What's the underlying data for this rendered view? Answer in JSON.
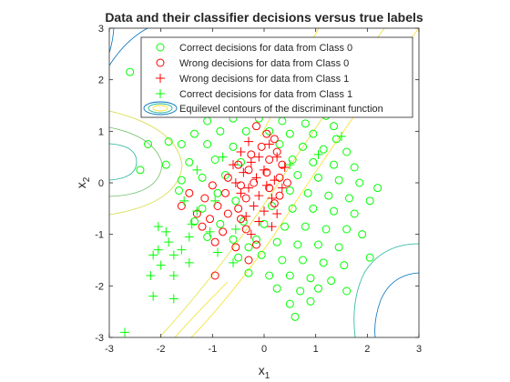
{
  "chart_data": {
    "type": "scatter",
    "title": "Data and their classifier decisions versus true labels",
    "xlabel": "x",
    "xlabel_sub": "1",
    "ylabel": "x",
    "ylabel_sub": "2",
    "xlim": [
      -3,
      3
    ],
    "ylim": [
      -3,
      3
    ],
    "xticks": [
      -3,
      -2,
      -1,
      0,
      1,
      2,
      3
    ],
    "yticks": [
      -3,
      -2,
      -1,
      0,
      1,
      2,
      3
    ],
    "xtick_labels": [
      "-3",
      "-2",
      "-1",
      "0",
      "1",
      "2",
      "3"
    ],
    "ytick_labels": [
      "-3",
      "-2",
      "-1",
      "0",
      "1",
      "2",
      "3"
    ],
    "grid": false,
    "legend_position": "top-right",
    "legend": [
      {
        "label": "Correct decisions for data from Class 0",
        "marker": "circle",
        "color": "#00ff00"
      },
      {
        "label": "Wrong decisions for data from Class 0",
        "marker": "circle",
        "color": "#ff0000"
      },
      {
        "label": "Wrong decisions for data from Class 1",
        "marker": "plus",
        "color": "#ff0000"
      },
      {
        "label": "Correct decisions for data from Class 1",
        "marker": "plus",
        "color": "#00ff00"
      },
      {
        "label": "Equilevel contours of the discriminant function",
        "marker": "contour",
        "color": "#0072bd"
      }
    ],
    "series": [
      {
        "name": "Correct decisions for data from Class 0",
        "marker": "circle",
        "color": "#00ff00",
        "points": [
          [
            -2.6,
            2.15
          ],
          [
            -1.3,
            1.7
          ],
          [
            -0.25,
            1.75
          ],
          [
            0.05,
            1.8
          ],
          [
            0.4,
            1.65
          ],
          [
            0.9,
            1.5
          ],
          [
            -0.9,
            1.45
          ],
          [
            -0.4,
            1.5
          ],
          [
            0.2,
            1.45
          ],
          [
            0.65,
            1.35
          ],
          [
            1.2,
            1.3
          ],
          [
            -1.1,
            1.2
          ],
          [
            -0.6,
            1.25
          ],
          [
            -0.1,
            1.25
          ],
          [
            0.35,
            1.2
          ],
          [
            0.8,
            1.15
          ],
          [
            1.35,
            1.1
          ],
          [
            -1.35,
            0.95
          ],
          [
            -0.85,
            1.0
          ],
          [
            -0.35,
            1.0
          ],
          [
            0.1,
            1.0
          ],
          [
            0.5,
            0.95
          ],
          [
            0.95,
            0.95
          ],
          [
            1.4,
            0.85
          ],
          [
            -2.25,
            0.75
          ],
          [
            -1.85,
            0.8
          ],
          [
            -1.6,
            0.75
          ],
          [
            -1.1,
            0.75
          ],
          [
            -0.6,
            0.7
          ],
          [
            0.3,
            0.75
          ],
          [
            0.75,
            0.7
          ],
          [
            1.15,
            0.65
          ],
          [
            1.6,
            0.6
          ],
          [
            -2.4,
            0.25
          ],
          [
            -1.9,
            0.35
          ],
          [
            -1.45,
            0.4
          ],
          [
            -0.95,
            0.45
          ],
          [
            -0.45,
            0.4
          ],
          [
            0.55,
            0.45
          ],
          [
            0.95,
            0.4
          ],
          [
            1.35,
            0.35
          ],
          [
            1.75,
            0.3
          ],
          [
            -1.6,
            0.05
          ],
          [
            -1.2,
            0.1
          ],
          [
            -0.75,
            0.15
          ],
          [
            0.65,
            0.15
          ],
          [
            1.05,
            0.1
          ],
          [
            1.45,
            0.05
          ],
          [
            1.85,
            0.0
          ],
          [
            2.2,
            -0.1
          ],
          [
            -0.9,
            -0.2
          ],
          [
            0.5,
            -0.15
          ],
          [
            0.85,
            -0.2
          ],
          [
            1.25,
            -0.25
          ],
          [
            1.65,
            -0.3
          ],
          [
            2.05,
            -0.35
          ],
          [
            -1.2,
            -0.5
          ],
          [
            0.15,
            -0.45
          ],
          [
            0.55,
            -0.5
          ],
          [
            0.95,
            -0.5
          ],
          [
            1.35,
            -0.55
          ],
          [
            1.75,
            -0.6
          ],
          [
            -0.85,
            -0.8
          ],
          [
            -0.4,
            -0.75
          ],
          [
            0.0,
            -0.8
          ],
          [
            0.4,
            -0.85
          ],
          [
            0.8,
            -0.85
          ],
          [
            1.2,
            -0.9
          ],
          [
            1.6,
            -0.9
          ],
          [
            -1.1,
            -1.05
          ],
          [
            -0.6,
            -1.1
          ],
          [
            -0.15,
            -1.1
          ],
          [
            0.25,
            -1.15
          ],
          [
            0.65,
            -1.2
          ],
          [
            1.05,
            -1.2
          ],
          [
            1.45,
            -1.25
          ],
          [
            -0.5,
            -1.45
          ],
          [
            -0.05,
            -1.4
          ],
          [
            0.35,
            -1.5
          ],
          [
            0.75,
            -1.5
          ],
          [
            1.15,
            -1.55
          ],
          [
            1.55,
            -1.6
          ],
          [
            -0.3,
            -1.75
          ],
          [
            0.1,
            -1.8
          ],
          [
            0.5,
            -1.8
          ],
          [
            0.9,
            -1.85
          ],
          [
            1.3,
            -1.9
          ],
          [
            0.25,
            -2.05
          ],
          [
            0.7,
            -2.1
          ],
          [
            1.05,
            -2.05
          ],
          [
            0.5,
            -2.35
          ],
          [
            0.9,
            -2.3
          ],
          [
            0.6,
            -2.6
          ],
          [
            1.6,
            -2.1
          ],
          [
            2.05,
            -1.45
          ],
          [
            -1.65,
            -0.15
          ],
          [
            -0.55,
            -0.35
          ],
          [
            -1.35,
            -0.75
          ],
          [
            -0.3,
            -1.25
          ],
          [
            1.9,
            -1.0
          ]
        ]
      },
      {
        "name": "Wrong decisions for data from Class 0",
        "marker": "circle",
        "color": "#ff0000",
        "points": [
          [
            -0.15,
            1.1
          ],
          [
            0.05,
            0.95
          ],
          [
            0.2,
            0.85
          ],
          [
            -0.05,
            0.7
          ],
          [
            0.25,
            0.6
          ],
          [
            -0.25,
            0.55
          ],
          [
            0.1,
            0.45
          ],
          [
            -0.5,
            0.35
          ],
          [
            0.35,
            0.35
          ],
          [
            -0.3,
            0.25
          ],
          [
            0.05,
            0.2
          ],
          [
            -0.7,
            0.1
          ],
          [
            0.3,
            0.1
          ],
          [
            -0.2,
            0.0
          ],
          [
            0.45,
            0.0
          ],
          [
            -1.0,
            -0.05
          ],
          [
            -0.45,
            -0.05
          ],
          [
            0.1,
            -0.1
          ],
          [
            -1.45,
            -0.2
          ],
          [
            -0.75,
            -0.2
          ],
          [
            0.3,
            -0.25
          ],
          [
            -1.15,
            -0.3
          ],
          [
            -0.35,
            -0.3
          ],
          [
            0.2,
            -0.4
          ],
          [
            -1.6,
            -0.45
          ],
          [
            -0.9,
            -0.45
          ],
          [
            -0.5,
            -0.5
          ],
          [
            -1.3,
            -0.6
          ],
          [
            -0.7,
            -0.6
          ],
          [
            -1.05,
            -0.7
          ],
          [
            -0.45,
            -0.7
          ],
          [
            -1.2,
            -0.85
          ],
          [
            -0.8,
            -0.95
          ],
          [
            -0.35,
            -0.9
          ],
          [
            -0.95,
            -1.15
          ],
          [
            -0.55,
            -1.25
          ],
          [
            -0.15,
            -1.2
          ],
          [
            -0.3,
            -1.5
          ],
          [
            -0.95,
            -1.8
          ]
        ]
      },
      {
        "name": "Wrong decisions for data from Class 1",
        "marker": "plus",
        "color": "#ff0000",
        "points": [
          [
            -0.3,
            0.8
          ],
          [
            0.1,
            0.75
          ],
          [
            -0.45,
            0.6
          ],
          [
            -0.1,
            0.5
          ],
          [
            0.25,
            0.5
          ],
          [
            -0.6,
            0.35
          ],
          [
            -0.25,
            0.4
          ],
          [
            0.4,
            0.3
          ],
          [
            -0.4,
            0.2
          ],
          [
            0.0,
            0.25
          ],
          [
            -0.15,
            0.1
          ],
          [
            0.2,
            0.05
          ],
          [
            -0.55,
            0.0
          ],
          [
            -0.3,
            -0.1
          ],
          [
            0.05,
            -0.05
          ],
          [
            0.35,
            -0.1
          ],
          [
            -0.45,
            -0.2
          ],
          [
            -0.1,
            -0.25
          ],
          [
            0.15,
            -0.3
          ],
          [
            -0.2,
            -0.45
          ],
          [
            0.0,
            -0.55
          ],
          [
            0.25,
            -0.6
          ],
          [
            -0.35,
            -0.65
          ],
          [
            -0.1,
            -0.75
          ],
          [
            0.15,
            -0.85
          ],
          [
            -0.25,
            -1.0
          ]
        ]
      },
      {
        "name": "Correct decisions for data from Class 1",
        "marker": "plus",
        "color": "#00ff00",
        "points": [
          [
            1.5,
            0.9
          ],
          [
            1.05,
            0.55
          ],
          [
            -0.8,
            0.5
          ],
          [
            -1.3,
            0.25
          ],
          [
            -1.55,
            -0.35
          ],
          [
            -0.95,
            -0.35
          ],
          [
            -1.3,
            -0.55
          ],
          [
            -1.4,
            -0.8
          ],
          [
            -1.05,
            -0.95
          ],
          [
            -1.45,
            -1.05
          ],
          [
            -1.6,
            -1.3
          ],
          [
            -1.9,
            -0.95
          ],
          [
            -2.05,
            -0.85
          ],
          [
            -1.85,
            -1.15
          ],
          [
            -2.05,
            -1.3
          ],
          [
            -2.15,
            -1.4
          ],
          [
            -1.75,
            -1.4
          ],
          [
            -2.0,
            -1.6
          ],
          [
            -1.75,
            -1.8
          ],
          [
            -2.2,
            -1.8
          ],
          [
            -1.75,
            -2.25
          ],
          [
            -2.15,
            -2.2
          ],
          [
            -2.7,
            -2.9
          ],
          [
            -1.45,
            -1.55
          ],
          [
            -0.6,
            -1.55
          ],
          [
            -0.9,
            -1.35
          ],
          [
            0.5,
            0.35
          ],
          [
            -0.55,
            -0.9
          ]
        ]
      }
    ]
  }
}
